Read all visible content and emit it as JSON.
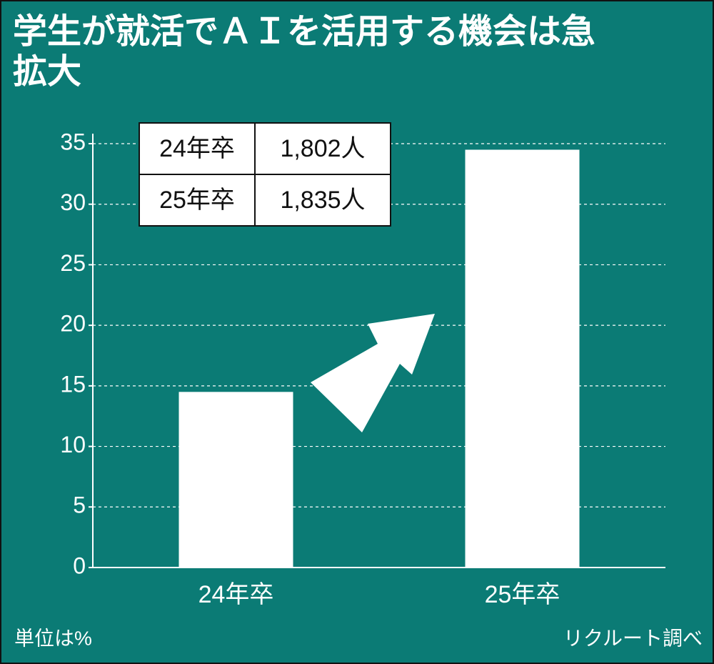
{
  "chart_data": {
    "type": "bar",
    "title": "学生が就活でＡＩを活用する機会は急拡大",
    "categories": [
      "24年卒",
      "25年卒"
    ],
    "values": [
      14.5,
      34.5
    ],
    "color": "#ffffff",
    "ylim": [
      0,
      35
    ],
    "yticks": [
      0,
      5,
      10,
      15,
      20,
      25,
      30,
      35
    ],
    "grid": true,
    "table": {
      "rows": [
        [
          "24年卒",
          "1,802人"
        ],
        [
          "25年卒",
          "1,835人"
        ]
      ]
    },
    "unit_note": "単位は%",
    "source": "リクルート調べ"
  }
}
